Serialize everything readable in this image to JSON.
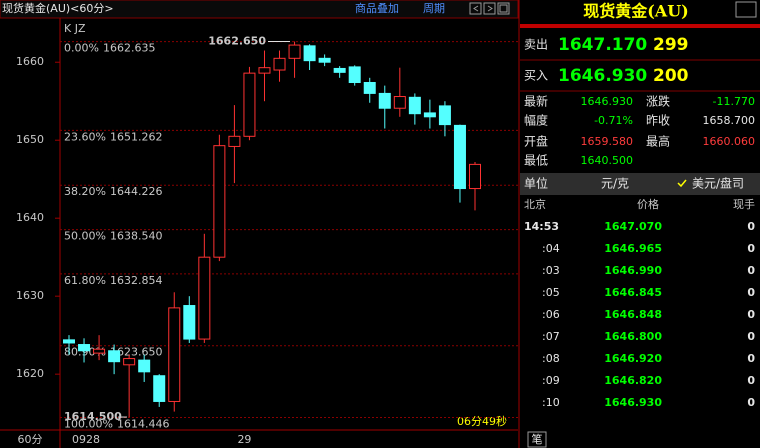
{
  "window": {
    "title": "现货黄金(AU)<60分>",
    "menu": [
      "商品叠加",
      "周期"
    ]
  },
  "chart_data": {
    "type": "candlestick",
    "indicator_label": "K JZ",
    "period": "60分",
    "countdown": "06分49秒",
    "categories": [
      null,
      "0928",
      null,
      null,
      null,
      null,
      null,
      null,
      null,
      null,
      null,
      null,
      "29",
      null,
      null,
      null,
      null,
      null,
      null,
      null,
      null,
      null,
      null,
      null,
      null,
      null,
      null,
      null
    ],
    "open": [
      1624.4,
      1623.8,
      1622.7,
      1623.0,
      1621.2,
      1621.8,
      1619.8,
      1616.5,
      1628.8,
      1624.5,
      1635.0,
      1649.2,
      1650.5,
      1658.6,
      1659.0,
      1660.5,
      1662.1,
      1660.5,
      1659.2,
      1659.4,
      1657.4,
      1656.0,
      1654.1,
      1655.5,
      1653.5,
      1654.4,
      1651.9,
      1643.8
    ],
    "high": [
      1625.0,
      1624.6,
      1625.0,
      1623.8,
      1622.5,
      1622.5,
      1620.0,
      1630.5,
      1630.0,
      1638.0,
      1650.7,
      1654.5,
      1659.4,
      1661.5,
      1661.5,
      1662.65,
      1662.3,
      1661.0,
      1659.5,
      1659.6,
      1658.0,
      1657.0,
      1659.3,
      1656.0,
      1655.2,
      1655.0,
      1652.0,
      1647.2
    ],
    "low": [
      1622.5,
      1621.5,
      1621.8,
      1620.0,
      1614.5,
      1619.0,
      1615.8,
      1615.2,
      1624.0,
      1624.0,
      1634.5,
      1644.5,
      1650.0,
      1655.0,
      1657.5,
      1658.0,
      1659.0,
      1659.5,
      1658.0,
      1657.0,
      1654.8,
      1651.5,
      1653.0,
      1652.0,
      1651.5,
      1650.5,
      1642.0,
      1641.0
    ],
    "close": [
      1624.0,
      1623.0,
      1623.2,
      1621.6,
      1622.0,
      1620.3,
      1616.5,
      1628.5,
      1624.5,
      1635.0,
      1649.3,
      1650.5,
      1658.6,
      1659.3,
      1660.5,
      1662.2,
      1660.2,
      1660.0,
      1658.7,
      1657.4,
      1656.0,
      1654.1,
      1655.6,
      1653.4,
      1653.0,
      1652.0,
      1643.8,
      1646.9
    ],
    "up_color": "#ff3232",
    "down_color": "#54ffff",
    "ylim": [
      1612.84,
      1665.67
    ],
    "yticks": [
      1620,
      1630,
      1640,
      1650,
      1660
    ],
    "fib_levels": [
      {
        "ratio": "0.00%",
        "price": {
          "value": 1662.635,
          "label": "1662.635"
        }
      },
      {
        "ratio": "23.60%",
        "price": {
          "value": 1651.262,
          "label": "1651.262"
        }
      },
      {
        "ratio": "38.20%",
        "price": {
          "value": 1644.226,
          "label": "1644.226"
        }
      },
      {
        "ratio": "50.00%",
        "price": {
          "value": 1638.54,
          "label": "1638.540"
        }
      },
      {
        "ratio": "61.80%",
        "price": {
          "value": 1632.854,
          "label": "1632.854"
        }
      },
      {
        "ratio": "80.90%",
        "price": {
          "value": 1623.65,
          "label": "1623.650"
        }
      },
      {
        "ratio": "100.00%",
        "price": {
          "value": 1614.446,
          "label": "1614.446"
        }
      }
    ],
    "annotations": [
      {
        "value": 1662.65,
        "label": "1662.650"
      },
      {
        "value": 1614.5,
        "label": "1614.500"
      }
    ]
  },
  "quote": {
    "title": "现货黄金(AU)",
    "sell": {
      "label": "卖出",
      "price": "1647.170",
      "volume": "299"
    },
    "buy": {
      "label": "买入",
      "price": "1646.930",
      "volume": "200"
    },
    "stats": [
      [
        "最新",
        "1646.930",
        "涨跌",
        "-11.770"
      ],
      [
        "幅度",
        "-0.71%",
        "昨收",
        "1658.700"
      ],
      [
        "开盘",
        "1659.580",
        "最高",
        "1660.060"
      ],
      [
        "最低",
        "1640.500"
      ]
    ],
    "unit": {
      "label": "单位",
      "value": "元/克",
      "option": "美元/盘司"
    },
    "ticks": {
      "header": [
        "北京",
        "价格",
        "现手"
      ],
      "rows": [
        [
          "14:53",
          "1647.070",
          "0"
        ],
        [
          ":04",
          "1646.965",
          "0"
        ],
        [
          ":03",
          "1646.990",
          "0"
        ],
        [
          ":05",
          "1646.845",
          "0"
        ],
        [
          ":06",
          "1646.848",
          "0"
        ],
        [
          ":07",
          "1646.800",
          "0"
        ],
        [
          ":08",
          "1646.920",
          "0"
        ],
        [
          ":09",
          "1646.820",
          "0"
        ],
        [
          ":10",
          "1646.930",
          "0"
        ]
      ]
    },
    "footer": "笔"
  }
}
